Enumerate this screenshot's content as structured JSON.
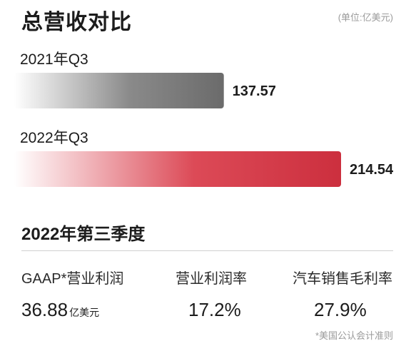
{
  "header": {
    "title": "总营收对比",
    "unit_note": "(单位:亿美元)"
  },
  "chart_data": {
    "type": "bar",
    "orientation": "horizontal",
    "categories": [
      "2021年Q3",
      "2022年Q3"
    ],
    "values": [
      137.57,
      214.54
    ],
    "value_labels": [
      "137.57",
      "214.54"
    ],
    "unit": "亿美元",
    "colors": [
      "#6b6b6b",
      "#cc2f3e"
    ],
    "grid": false,
    "legend": "none"
  },
  "section": {
    "title": "2022年第三季度",
    "metrics": [
      {
        "label": "GAAP*营业利润",
        "value": "36.88",
        "unit": "亿美元"
      },
      {
        "label": "营业利润率",
        "value": "17.2%",
        "unit": ""
      },
      {
        "label": "汽车销售毛利率",
        "value": "27.9%",
        "unit": ""
      }
    ]
  },
  "footnote": "*美国公认会计准则"
}
